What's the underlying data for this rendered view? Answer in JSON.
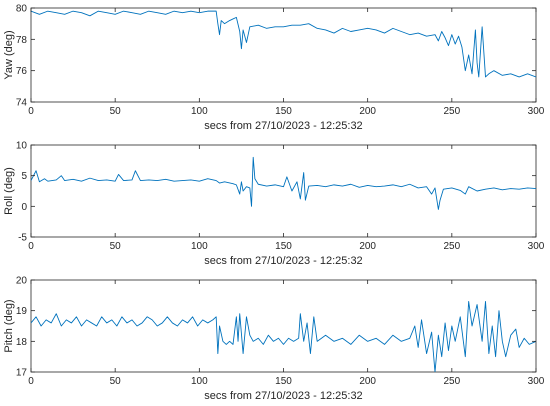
{
  "chart_data": [
    {
      "type": "line",
      "xlabel": "secs from 27/10/2023 - 12:25:32",
      "ylabel": "Yaw (deg)",
      "xlim": [
        0,
        300
      ],
      "ylim": [
        74,
        80
      ],
      "xticks": [
        "0",
        "50",
        "100",
        "150",
        "200",
        "250",
        "300"
      ],
      "yticks": [
        "74",
        "76",
        "78",
        "80"
      ],
      "grid": false,
      "series": [
        {
          "color": "#0072BD",
          "x": [
            0,
            5,
            10,
            15,
            20,
            25,
            30,
            35,
            40,
            45,
            50,
            55,
            60,
            65,
            70,
            75,
            80,
            85,
            90,
            95,
            100,
            105,
            110,
            111,
            112,
            113,
            115,
            118,
            120,
            122,
            124,
            125,
            126,
            128,
            130,
            135,
            140,
            145,
            150,
            155,
            160,
            165,
            170,
            175,
            180,
            185,
            190,
            195,
            200,
            205,
            210,
            215,
            220,
            225,
            230,
            235,
            240,
            242,
            244,
            246,
            248,
            250,
            252,
            254,
            256,
            258,
            260,
            262,
            264,
            265,
            266,
            268,
            270,
            272,
            275,
            280,
            285,
            290,
            295,
            300
          ],
          "values": [
            79.8,
            79.6,
            79.8,
            79.7,
            79.6,
            79.8,
            79.7,
            79.5,
            79.8,
            79.7,
            79.6,
            79.8,
            79.7,
            79.6,
            79.8,
            79.7,
            79.6,
            79.8,
            79.7,
            79.8,
            79.7,
            79.8,
            79.8,
            79.0,
            78.3,
            79.2,
            79.0,
            79.2,
            79.3,
            79.4,
            78.5,
            77.4,
            78.6,
            77.8,
            78.8,
            78.9,
            78.7,
            78.8,
            78.8,
            78.9,
            78.9,
            79.0,
            78.7,
            78.6,
            78.4,
            78.7,
            78.5,
            78.6,
            78.7,
            78.6,
            78.4,
            78.7,
            78.5,
            78.3,
            78.4,
            78.2,
            78.3,
            77.9,
            78.5,
            78.1,
            77.6,
            78.3,
            77.7,
            78.2,
            77.5,
            76.0,
            77.0,
            75.8,
            78.6,
            76.5,
            75.6,
            78.8,
            75.6,
            75.8,
            76.0,
            75.7,
            75.8,
            75.6,
            75.8,
            75.6
          ]
        }
      ]
    },
    {
      "type": "line",
      "xlabel": "secs from 27/10/2023 - 12:25:32",
      "ylabel": "Roll (deg)",
      "xlim": [
        0,
        300
      ],
      "ylim": [
        -5,
        10
      ],
      "xticks": [
        "0",
        "50",
        "100",
        "150",
        "200",
        "250",
        "300"
      ],
      "yticks": [
        "-5",
        "0",
        "5",
        "10"
      ],
      "grid": false,
      "series": [
        {
          "color": "#0072BD",
          "x": [
            0,
            3,
            5,
            8,
            10,
            15,
            18,
            20,
            25,
            30,
            35,
            40,
            45,
            50,
            52,
            55,
            60,
            62,
            65,
            70,
            75,
            80,
            85,
            90,
            95,
            100,
            105,
            110,
            112,
            115,
            120,
            122,
            124,
            125,
            126,
            128,
            130,
            131,
            132,
            133,
            135,
            140,
            145,
            150,
            152,
            155,
            158,
            160,
            162,
            163,
            165,
            170,
            175,
            180,
            185,
            190,
            195,
            200,
            205,
            210,
            215,
            220,
            225,
            230,
            235,
            238,
            240,
            242,
            243,
            245,
            250,
            255,
            258,
            260,
            265,
            270,
            275,
            280,
            285,
            290,
            295,
            300
          ],
          "values": [
            4.2,
            5.8,
            4.0,
            4.5,
            4.1,
            4.3,
            5.0,
            4.2,
            4.4,
            4.1,
            4.6,
            4.2,
            4.3,
            4.1,
            5.2,
            4.2,
            4.3,
            5.8,
            4.2,
            4.3,
            4.2,
            4.4,
            4.1,
            4.2,
            4.3,
            4.1,
            4.5,
            4.2,
            3.8,
            4.0,
            3.7,
            3.5,
            2.0,
            4.0,
            2.5,
            3.2,
            3.0,
            0.0,
            8.0,
            4.5,
            3.6,
            3.3,
            3.5,
            3.2,
            4.8,
            2.5,
            4.0,
            1.2,
            5.5,
            1.0,
            3.3,
            3.4,
            3.2,
            3.5,
            3.3,
            3.6,
            3.1,
            3.4,
            3.2,
            3.3,
            3.5,
            3.2,
            3.6,
            3.0,
            3.2,
            2.0,
            3.0,
            -0.5,
            1.0,
            2.8,
            3.0,
            2.6,
            2.0,
            3.2,
            2.5,
            2.8,
            3.0,
            2.7,
            2.9,
            2.8,
            3.0,
            2.9
          ]
        }
      ]
    },
    {
      "type": "line",
      "xlabel": "secs from 27/10/2023 - 12:25:32",
      "ylabel": "Pitch (deg)",
      "xlim": [
        0,
        300
      ],
      "ylim": [
        17,
        20
      ],
      "xticks": [
        "0",
        "50",
        "100",
        "150",
        "200",
        "250",
        "300"
      ],
      "yticks": [
        "17",
        "18",
        "19",
        "20"
      ],
      "grid": false,
      "series": [
        {
          "color": "#0072BD",
          "x": [
            0,
            3,
            6,
            9,
            12,
            15,
            18,
            21,
            24,
            27,
            30,
            33,
            36,
            39,
            42,
            45,
            48,
            51,
            54,
            57,
            60,
            63,
            66,
            69,
            72,
            75,
            78,
            81,
            84,
            87,
            90,
            93,
            96,
            99,
            102,
            105,
            108,
            110,
            111,
            112,
            114,
            116,
            118,
            120,
            122,
            123,
            124,
            126,
            128,
            130,
            132,
            135,
            138,
            141,
            144,
            147,
            150,
            153,
            156,
            159,
            160,
            162,
            164,
            166,
            168,
            170,
            175,
            180,
            185,
            190,
            195,
            200,
            205,
            210,
            215,
            220,
            225,
            228,
            230,
            232,
            235,
            238,
            240,
            242,
            244,
            246,
            248,
            250,
            252,
            255,
            258,
            260,
            262,
            265,
            268,
            270,
            272,
            274,
            276,
            278,
            280,
            282,
            285,
            288,
            290,
            293,
            296,
            300
          ],
          "values": [
            18.6,
            18.8,
            18.5,
            18.7,
            18.6,
            18.9,
            18.5,
            18.7,
            18.6,
            18.8,
            18.5,
            18.7,
            18.6,
            18.5,
            18.8,
            18.6,
            18.7,
            18.5,
            18.8,
            18.6,
            18.7,
            18.5,
            18.6,
            18.8,
            18.7,
            18.5,
            18.6,
            18.8,
            18.6,
            18.5,
            18.7,
            18.6,
            18.8,
            18.5,
            18.7,
            18.6,
            18.7,
            18.8,
            17.6,
            18.5,
            18.0,
            17.9,
            18.0,
            17.9,
            18.8,
            18.0,
            18.9,
            17.6,
            18.8,
            18.2,
            18.0,
            18.1,
            17.9,
            18.2,
            18.0,
            18.1,
            17.9,
            18.1,
            18.0,
            18.1,
            18.9,
            18.0,
            18.6,
            17.6,
            18.8,
            18.0,
            18.2,
            18.0,
            18.1,
            17.9,
            18.2,
            18.0,
            18.1,
            17.9,
            18.2,
            18.0,
            18.1,
            18.5,
            17.8,
            18.7,
            17.6,
            18.3,
            17.0,
            18.2,
            17.5,
            18.6,
            17.7,
            18.5,
            18.0,
            18.8,
            17.5,
            19.3,
            18.5,
            19.2,
            18.0,
            19.3,
            17.6,
            18.5,
            17.5,
            19.0,
            18.0,
            17.5,
            18.2,
            18.4,
            17.8,
            18.1,
            17.9,
            18.0
          ]
        }
      ]
    }
  ]
}
